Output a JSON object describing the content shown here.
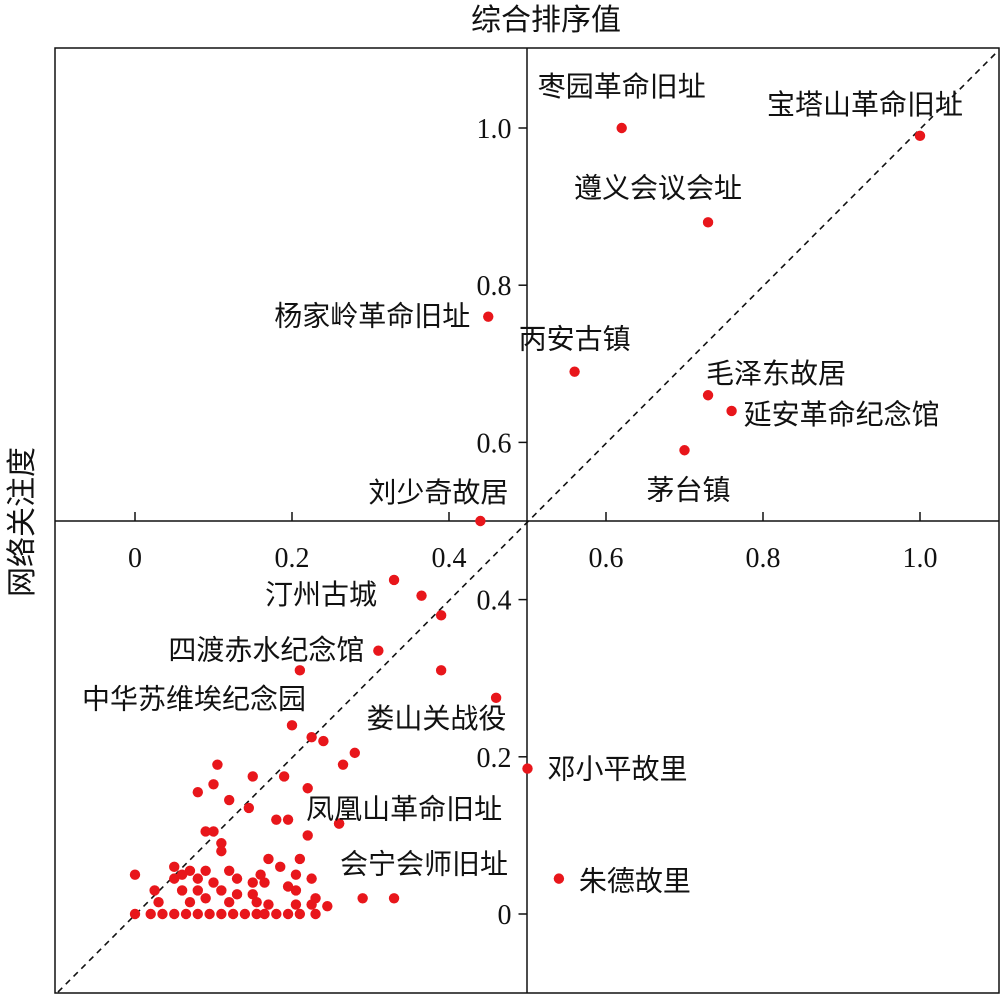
{
  "chart_data": {
    "type": "scatter",
    "title": "综合排序值",
    "xlabel": "综合排序值",
    "ylabel": "网络关注度",
    "xlim": [
      -0.1,
      1.1
    ],
    "ylim": [
      -0.1,
      1.1
    ],
    "x_ticks": [
      0,
      0.2,
      0.4,
      0.6,
      0.8,
      1.0
    ],
    "x_tick_labels": [
      "0",
      "0.2",
      "0.4",
      "0.6",
      "0.8",
      "1.0"
    ],
    "y_ticks": [
      0,
      0.2,
      0.4,
      0.6,
      0.8,
      1.0
    ],
    "y_tick_labels": [
      "0",
      "0.2",
      "0.4",
      "0.6",
      "0.8",
      "1.0"
    ],
    "quadrant_lines": {
      "x": 0.5,
      "y": 0.5
    },
    "reference_line": "y = x",
    "grid": false,
    "point_color": "#e8161b",
    "labeled_points": [
      {
        "name": "枣园革命旧址",
        "x": 0.62,
        "y": 1.0
      },
      {
        "name": "宝塔山革命旧址",
        "x": 1.0,
        "y": 0.99
      },
      {
        "name": "遵义会议会址",
        "x": 0.73,
        "y": 0.88
      },
      {
        "name": "杨家岭革命旧址",
        "x": 0.45,
        "y": 0.76
      },
      {
        "name": "丙安古镇",
        "x": 0.56,
        "y": 0.69
      },
      {
        "name": "毛泽东故居",
        "x": 0.73,
        "y": 0.66
      },
      {
        "name": "延安革命纪念馆",
        "x": 0.76,
        "y": 0.64
      },
      {
        "name": "茅台镇",
        "x": 0.7,
        "y": 0.59
      },
      {
        "name": "刘少奇故居",
        "x": 0.44,
        "y": 0.5
      },
      {
        "name": "汀州古城",
        "x": 0.33,
        "y": 0.425
      },
      {
        "name": "四渡赤水纪念馆",
        "x": 0.31,
        "y": 0.335
      },
      {
        "name": "中华苏维埃纪念园",
        "x": 0.2,
        "y": 0.24
      },
      {
        "name": "娄山关战役",
        "x": 0.24,
        "y": 0.22
      },
      {
        "name": "邓小平故里",
        "x": 0.5,
        "y": 0.185
      },
      {
        "name": "凤凰山革命旧址",
        "x": 0.26,
        "y": 0.115
      },
      {
        "name": "会宁会师旧址",
        "x": 0.33,
        "y": 0.02
      },
      {
        "name": "朱德故里",
        "x": 0.54,
        "y": 0.045
      }
    ],
    "unlabeled_points": [
      [
        0.365,
        0.405
      ],
      [
        0.39,
        0.38
      ],
      [
        0.21,
        0.31
      ],
      [
        0.39,
        0.31
      ],
      [
        0.46,
        0.275
      ],
      [
        0.225,
        0.225
      ],
      [
        0.28,
        0.205
      ],
      [
        0.265,
        0.19
      ],
      [
        0.105,
        0.19
      ],
      [
        0.15,
        0.175
      ],
      [
        0.19,
        0.175
      ],
      [
        0.1,
        0.165
      ],
      [
        0.22,
        0.16
      ],
      [
        0.08,
        0.155
      ],
      [
        0.12,
        0.145
      ],
      [
        0.145,
        0.135
      ],
      [
        0.18,
        0.12
      ],
      [
        0.195,
        0.12
      ],
      [
        0.26,
        0.115
      ],
      [
        0.09,
        0.105
      ],
      [
        0.1,
        0.105
      ],
      [
        0.22,
        0.1
      ],
      [
        0.11,
        0.09
      ],
      [
        0.11,
        0.08
      ],
      [
        0.17,
        0.07
      ],
      [
        0.21,
        0.07
      ],
      [
        0.05,
        0.06
      ],
      [
        0.07,
        0.055
      ],
      [
        0.09,
        0.055
      ],
      [
        0.12,
        0.055
      ],
      [
        0.16,
        0.05
      ],
      [
        0.185,
        0.06
      ],
      [
        0.0,
        0.05
      ],
      [
        0.05,
        0.045
      ],
      [
        0.06,
        0.05
      ],
      [
        0.08,
        0.045
      ],
      [
        0.1,
        0.04
      ],
      [
        0.13,
        0.045
      ],
      [
        0.15,
        0.04
      ],
      [
        0.165,
        0.04
      ],
      [
        0.205,
        0.05
      ],
      [
        0.225,
        0.045
      ],
      [
        0.025,
        0.03
      ],
      [
        0.06,
        0.03
      ],
      [
        0.08,
        0.03
      ],
      [
        0.11,
        0.03
      ],
      [
        0.13,
        0.025
      ],
      [
        0.15,
        0.025
      ],
      [
        0.195,
        0.035
      ],
      [
        0.205,
        0.03
      ],
      [
        0.23,
        0.02
      ],
      [
        0.29,
        0.02
      ],
      [
        0.03,
        0.015
      ],
      [
        0.07,
        0.015
      ],
      [
        0.09,
        0.02
      ],
      [
        0.12,
        0.015
      ],
      [
        0.155,
        0.015
      ],
      [
        0.17,
        0.012
      ],
      [
        0.205,
        0.012
      ],
      [
        0.225,
        0.012
      ],
      [
        0.245,
        0.01
      ],
      [
        0.0,
        0.0
      ],
      [
        0.02,
        0.0
      ],
      [
        0.035,
        0.0
      ],
      [
        0.05,
        0.0
      ],
      [
        0.065,
        0.0
      ],
      [
        0.08,
        0.0
      ],
      [
        0.095,
        0.0
      ],
      [
        0.11,
        0.0
      ],
      [
        0.125,
        0.0
      ],
      [
        0.14,
        0.0
      ],
      [
        0.155,
        0.0
      ],
      [
        0.165,
        0.0
      ],
      [
        0.18,
        0.0
      ],
      [
        0.195,
        0.0
      ],
      [
        0.21,
        0.0
      ],
      [
        0.23,
        0.0
      ]
    ]
  }
}
